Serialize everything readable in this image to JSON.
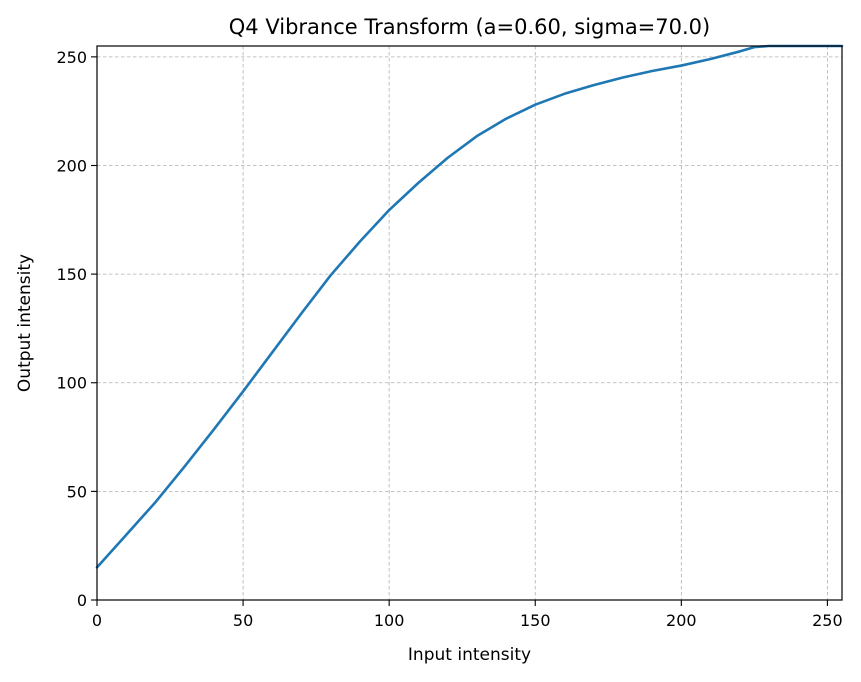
{
  "chart_data": {
    "type": "line",
    "title": "Q4 Vibrance Transform (a=0.60, sigma=70.0)",
    "xlabel": "Input intensity",
    "ylabel": "Output intensity",
    "xlim": [
      0,
      255
    ],
    "ylim": [
      0,
      255
    ],
    "xticks": [
      0,
      50,
      100,
      150,
      200,
      250
    ],
    "yticks": [
      0,
      50,
      100,
      150,
      200,
      250
    ],
    "grid": true,
    "series": [
      {
        "color": "#1f77b4",
        "x": [
          0,
          10,
          20,
          30,
          40,
          50,
          60,
          70,
          80,
          90,
          100,
          110,
          120,
          130,
          140,
          150,
          160,
          170,
          180,
          190,
          200,
          210,
          220,
          225,
          230,
          240,
          250,
          255
        ],
        "y": [
          15,
          30,
          45,
          61.5,
          78.5,
          96,
          114,
          132,
          149.5,
          165,
          179.5,
          192,
          203.5,
          213.5,
          221.5,
          228,
          233,
          237,
          240.5,
          243.5,
          246,
          249,
          252.5,
          254.5,
          255,
          255,
          255,
          255
        ]
      }
    ]
  }
}
